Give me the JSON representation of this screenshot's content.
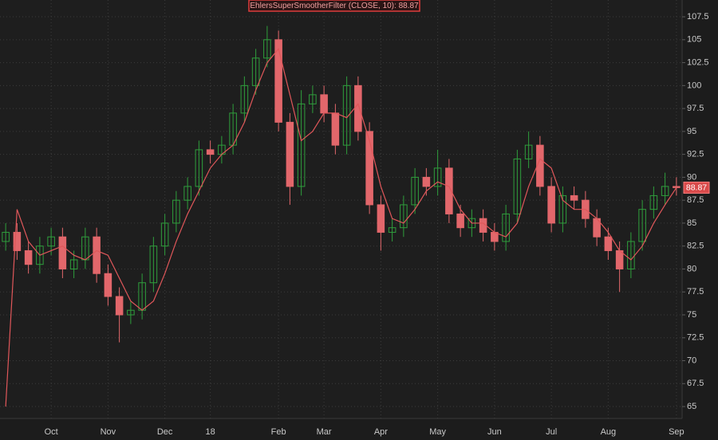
{
  "chart_data": {
    "type": "candlestick",
    "title": "EhlersSuperSmootherFilter (CLOSE, 10): 88.87",
    "categories": [
      null,
      null,
      null,
      null,
      "Oct",
      null,
      null,
      null,
      null,
      "Nov",
      null,
      null,
      null,
      null,
      "Dec",
      null,
      null,
      null,
      "18",
      null,
      null,
      null,
      null,
      null,
      "Feb",
      null,
      null,
      null,
      "Mar",
      null,
      null,
      null,
      null,
      "Apr",
      null,
      null,
      null,
      null,
      "May",
      null,
      null,
      null,
      null,
      "Jun",
      null,
      null,
      null,
      null,
      "Jul",
      null,
      null,
      null,
      null,
      "Aug",
      null,
      null,
      null,
      null,
      null,
      "Sep"
    ],
    "open": [
      83,
      84,
      82,
      80.5,
      82.5,
      83.5,
      80,
      81,
      83.5,
      79.5,
      77,
      75,
      75.5,
      78.5,
      82.5,
      85,
      87.5,
      89,
      93,
      92.5,
      93.5,
      97,
      100,
      103,
      105,
      96,
      89,
      98,
      99,
      97,
      93.5,
      100,
      95,
      87,
      84,
      84.5,
      87,
      90,
      89,
      91,
      86,
      84.5,
      85.5,
      84,
      83,
      86,
      92,
      93.5,
      89,
      85,
      88,
      87.5,
      85.5,
      83.5,
      82,
      80,
      83,
      86.5,
      88,
      89
    ],
    "high": [
      85,
      85,
      83,
      83.5,
      84.5,
      84.5,
      82,
      84.5,
      84.5,
      80.5,
      78,
      76.5,
      79.5,
      83.5,
      86,
      88.5,
      90,
      94,
      94,
      94.5,
      98,
      101,
      104,
      106.5,
      106,
      97,
      99.5,
      100,
      100,
      98,
      101,
      101,
      96,
      88,
      85.5,
      88,
      91,
      91,
      93,
      92,
      87,
      86.5,
      86.5,
      85,
      87,
      93,
      95,
      94.5,
      90,
      89,
      89,
      88.5,
      86.5,
      84.5,
      83,
      84,
      87.5,
      89,
      90.5,
      90
    ],
    "low": [
      82,
      81,
      79.5,
      79.5,
      81.5,
      79,
      79,
      80,
      78.5,
      76,
      72,
      74,
      74.5,
      77.5,
      81.5,
      84,
      86.5,
      88,
      91.5,
      91.5,
      92.5,
      96,
      99,
      102,
      95,
      87,
      88,
      97,
      96,
      92.5,
      92.5,
      94,
      86,
      82,
      83,
      83.5,
      86,
      88,
      88,
      85,
      83.5,
      83.5,
      83,
      82,
      82,
      85,
      91,
      88,
      84,
      84,
      86.5,
      84.5,
      82.5,
      81,
      77.5,
      79,
      82,
      85.5,
      87,
      88
    ],
    "close": [
      84,
      82,
      80.5,
      82.5,
      83.5,
      80,
      81,
      83.5,
      79.5,
      77,
      75,
      75.5,
      78.5,
      82.5,
      85,
      87.5,
      89,
      93,
      92.5,
      93.5,
      97,
      100,
      103,
      105,
      96,
      89,
      98,
      99,
      97,
      93.5,
      100,
      95,
      87,
      84,
      84.5,
      87,
      90,
      89,
      91,
      86,
      84.5,
      85.5,
      84,
      83,
      86,
      92,
      93.5,
      89,
      85,
      88,
      87.5,
      85.5,
      83.5,
      82,
      80,
      83,
      86.5,
      88,
      89,
      88.87
    ],
    "up_color": "#2f9e3c",
    "down_color": "#e2676b",
    "filter": {
      "color": "#e0575a",
      "values": [
        65,
        86.5,
        83,
        81.5,
        82,
        82.5,
        81.5,
        81,
        82,
        81.5,
        79,
        76.5,
        75.5,
        76.5,
        79.5,
        83,
        86,
        88.5,
        91,
        92.5,
        93.5,
        96,
        99.5,
        102.5,
        104,
        99,
        94,
        95,
        97,
        97,
        96.5,
        98,
        94,
        89,
        85.5,
        85,
        86.5,
        88.5,
        89.5,
        89,
        86.5,
        85,
        85,
        84,
        83.5,
        85,
        89,
        92,
        91,
        87.5,
        86.5,
        86.5,
        85.5,
        84,
        82,
        81,
        82.5,
        85,
        87,
        88.87
      ]
    },
    "last_value": 88.87,
    "ylim": [
      63.7,
      109.33
    ],
    "yticks": [
      65,
      67.5,
      70,
      72.5,
      75,
      77.5,
      80,
      82.5,
      85,
      87.5,
      90,
      92.5,
      95,
      97.5,
      100,
      102.5,
      105,
      107.5
    ],
    "grid": true
  }
}
